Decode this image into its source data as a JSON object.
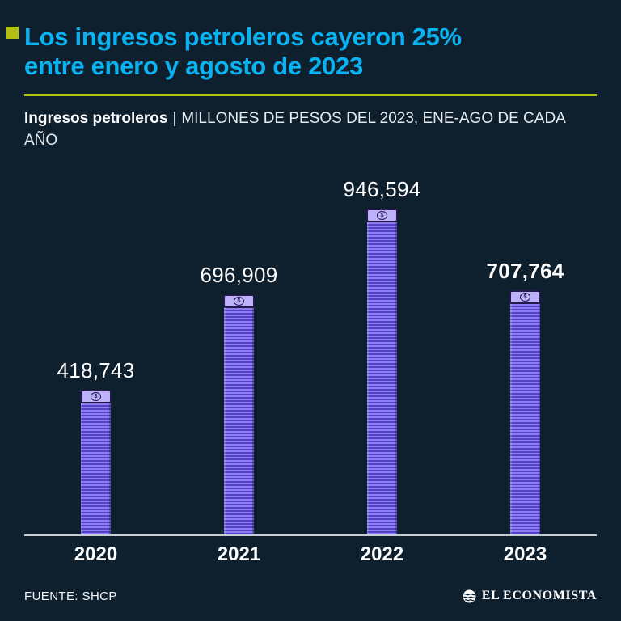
{
  "header": {
    "title": "Los ingresos petroleros cayeron 25%\nentre enero y agosto de 2023",
    "subtitle_bold": "Ingresos petroleros",
    "subtitle_sep": "|",
    "subtitle_rest": "MILLONES DE PESOS DEL 2023, ENE-AGO DE CADA AÑO"
  },
  "chart_data": {
    "type": "bar",
    "categories": [
      "2020",
      "2021",
      "2022",
      "2023"
    ],
    "values": [
      418743,
      696909,
      946594,
      707764
    ],
    "value_labels": [
      "418,743",
      "696,909",
      "946,594",
      "707,764"
    ],
    "highlight_index": 3,
    "title": "Ingresos petroleros",
    "xlabel": "",
    "ylabel": "Millones de pesos del 2023, ene-ago de cada año",
    "ylim": [
      0,
      946594
    ],
    "grid": false,
    "legend": false,
    "bar_color": "#7d6df0",
    "bar_icon": "dollar-bill-icon"
  },
  "colors": {
    "background": "#0e1f2e",
    "title": "#09b2f1",
    "accent": "#b3bf12",
    "bar_main": "#8d7cf4",
    "bar_stripe": "#5142c4",
    "bar_cap": "#bdb2fa",
    "axis": "#c7ced3"
  },
  "footer": {
    "source": "FUENTE: SHCP",
    "brand": "EL ECONOMISTA"
  }
}
